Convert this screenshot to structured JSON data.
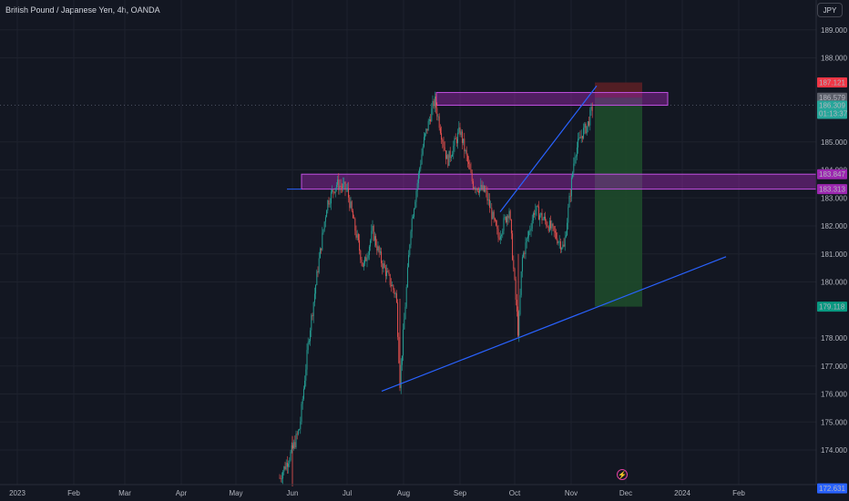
{
  "header": {
    "title": "British Pound / Japanese Yen, 4h, OANDA",
    "currency": "JPY"
  },
  "price_axis": {
    "ticks": [
      "189.000",
      "188.000",
      "185.000",
      "184.000",
      "183.000",
      "182.000",
      "181.000",
      "180.000",
      "178.000",
      "177.000",
      "176.000",
      "175.000",
      "174.000"
    ],
    "ymin": 172.6,
    "ymax": 189.4
  },
  "price_labels": {
    "red": "187.121",
    "gray": "186.579",
    "current": "186.309",
    "countdown": "01:13:37",
    "band_top": "183.847",
    "band_bottom": "183.313",
    "target": "179.118",
    "bottom": "172.631"
  },
  "time_axis": [
    "2023",
    "Feb",
    "Mar",
    "Apr",
    "May",
    "Jun",
    "Jul",
    "Aug",
    "Sep",
    "Oct",
    "Nov",
    "Dec",
    "2024",
    "Feb"
  ],
  "colors": {
    "background": "#131722",
    "up": "#26a69a",
    "down": "#ef5350",
    "zone": "#9c27b0",
    "trendline": "#2962ff",
    "target_zone": "#1e4d2b",
    "stop_zone": "#5a1f25"
  },
  "chart_data": {
    "type": "candlestick",
    "symbol": "GBP/JPY",
    "timeframe": "4h",
    "source": "OANDA",
    "ylim": [
      172.6,
      189.4
    ],
    "price_path": [
      [
        "2023-05-25",
        173.0
      ],
      [
        "2023-06-01",
        174.0
      ],
      [
        "2023-06-05",
        174.8
      ],
      [
        "2023-06-10",
        178.0
      ],
      [
        "2023-06-15",
        180.5
      ],
      [
        "2023-06-20",
        182.8
      ],
      [
        "2023-06-25",
        183.5
      ],
      [
        "2023-07-01",
        183.3
      ],
      [
        "2023-07-05",
        182.0
      ],
      [
        "2023-07-10",
        180.5
      ],
      [
        "2023-07-15",
        181.8
      ],
      [
        "2023-07-20",
        180.7
      ],
      [
        "2023-07-28",
        179.5
      ],
      [
        "2023-07-30",
        176.4
      ],
      [
        "2023-08-05",
        182.0
      ],
      [
        "2023-08-12",
        185.0
      ],
      [
        "2023-08-18",
        186.5
      ],
      [
        "2023-08-25",
        184.3
      ],
      [
        "2023-09-01",
        185.4
      ],
      [
        "2023-09-08",
        183.5
      ],
      [
        "2023-09-15",
        183.2
      ],
      [
        "2023-09-22",
        181.6
      ],
      [
        "2023-09-28",
        182.6
      ],
      [
        "2023-10-03",
        178.1
      ],
      [
        "2023-10-05",
        180.8
      ],
      [
        "2023-10-12",
        182.6
      ],
      [
        "2023-10-20",
        182.0
      ],
      [
        "2023-10-28",
        181.2
      ],
      [
        "2023-11-03",
        184.6
      ],
      [
        "2023-11-07",
        185.3
      ],
      [
        "2023-11-10",
        185.6
      ],
      [
        "2023-11-13",
        186.309
      ]
    ],
    "resistance_zone": [
      186.35,
      186.6
    ],
    "support_zone": [
      183.313,
      183.847
    ],
    "short_position": {
      "entry": 186.579,
      "stop": 187.121,
      "target": 179.118
    },
    "trendlines": [
      {
        "from": [
          "2023-07-20",
          176.1
        ],
        "to": [
          "2024-01-25",
          180.9
        ]
      },
      {
        "from": [
          "2023-09-23",
          182.5
        ],
        "to": [
          "2023-11-15",
          187.0
        ]
      }
    ]
  }
}
